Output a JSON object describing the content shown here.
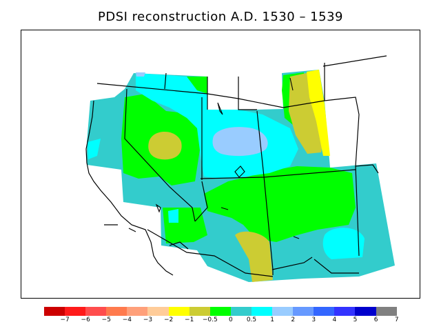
{
  "title": "PDSI reconstruction A.D. 1530 – 1539",
  "legend": {
    "colors": [
      "#cc0000",
      "#ff1a1a",
      "#ff4d4d",
      "#ff7a4d",
      "#ffa07a",
      "#ffcc99",
      "#ffff00",
      "#cccc33",
      "#00ff00",
      "#33cccc",
      "#00ffff",
      "#99ccff",
      "#6699ff",
      "#3366ff",
      "#3333ff",
      "#0000cc",
      "#808080"
    ],
    "tick_labels": [
      "−7",
      "−6",
      "−5",
      "−4",
      "−3",
      "−2",
      "−1",
      "−0.5",
      "0",
      "0.5",
      "1",
      "2",
      "3",
      "4",
      "5",
      "6",
      "7"
    ]
  },
  "map_fill_colors": {
    "base": "#33cccc",
    "wet": "#00ffff",
    "wetter": "#99ccff",
    "mild_dry": "#00ff00",
    "dry": "#cccc33",
    "drier": "#ffff00"
  }
}
